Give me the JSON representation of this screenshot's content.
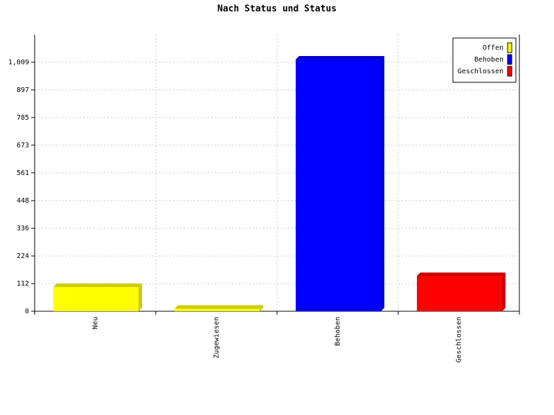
{
  "chart_data": {
    "type": "bar",
    "title": "Nach Status und Status",
    "categories": [
      "Neu",
      "Zugewiesen",
      "Behoben",
      "Geschlossen"
    ],
    "series": [
      {
        "name": "Offen",
        "color": "#ffff00",
        "values": [
          98,
          10,
          null,
          null
        ]
      },
      {
        "name": "Behoben",
        "color": "#0000ff",
        "values": [
          null,
          null,
          1020,
          null
        ]
      },
      {
        "name": "Geschlossen",
        "color": "#ff0000",
        "values": [
          null,
          null,
          null,
          143
        ]
      }
    ],
    "ylim": [
      0,
      1121
    ],
    "yticks": [
      0,
      112,
      224,
      336,
      448,
      561,
      673,
      785,
      897,
      {
        "value": 1009,
        "label": "1,009"
      }
    ],
    "grid": true,
    "legend": "top-right"
  }
}
